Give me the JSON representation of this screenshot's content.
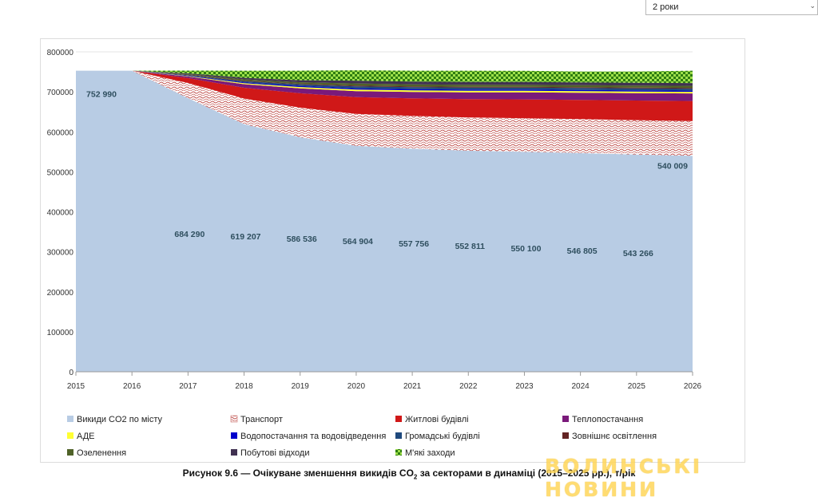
{
  "top_select": {
    "value": "2 роки",
    "caret": "⌄"
  },
  "caption": {
    "prefix": "Рисунок  9.6 — Очікуване зменшення викидів CO",
    "sub": "2",
    "suffix": " за секторами в динаміці (2015–2025 рр.), т/рік"
  },
  "watermark": "ВОЛИНСЬКІ НОВИНИ",
  "chart_data": {
    "type": "area",
    "stacked": true,
    "title": "",
    "xlabel": "",
    "ylabel": "",
    "x": [
      2015,
      2016,
      2017,
      2018,
      2019,
      2020,
      2021,
      2022,
      2023,
      2024,
      2025,
      2026
    ],
    "x_axis_extends_to": 2026,
    "ylim": [
      0,
      800000
    ],
    "yticks": [
      0,
      100000,
      200000,
      300000,
      400000,
      500000,
      600000,
      700000,
      800000
    ],
    "ytick_labels": [
      "0",
      "100000",
      "200000",
      "300000",
      "400000",
      "500000",
      "600000",
      "700000",
      "800000"
    ],
    "total": 752990,
    "series": [
      {
        "name": "Викиди CO2 по місту",
        "color": "#b8cce4",
        "pattern": "solid",
        "values": [
          752990,
          752990,
          684290,
          619207,
          586536,
          564904,
          557756,
          552811,
          550100,
          546805,
          543266,
          540009
        ]
      },
      {
        "name": "Транспорт",
        "color": "#c0504d",
        "pattern": "waves",
        "values": [
          0,
          0,
          38000,
          64000,
          74000,
          80000,
          82000,
          83000,
          84000,
          85000,
          86000,
          87000
        ]
      },
      {
        "name": "Житлові будівлі",
        "color": "#d01818",
        "pattern": "solid",
        "values": [
          0,
          0,
          12000,
          27000,
          36000,
          42000,
          44000,
          46000,
          47000,
          48000,
          49000,
          50000
        ]
      },
      {
        "name": "Теплопостачання",
        "color": "#7a1a7a",
        "pattern": "solid",
        "values": [
          0,
          0,
          4000,
          9000,
          12000,
          15000,
          16000,
          17000,
          17500,
          18000,
          18500,
          19000
        ]
      },
      {
        "name": "АДЕ",
        "color": "#ffff33",
        "pattern": "solid",
        "values": [
          0,
          0,
          1000,
          2500,
          3500,
          4000,
          4000,
          4000,
          4000,
          4000,
          4000,
          4000
        ]
      },
      {
        "name": "Водопостачання та водовідведення",
        "color": "#0000cc",
        "pattern": "solid",
        "values": [
          0,
          0,
          1000,
          2000,
          2500,
          3000,
          3000,
          3000,
          3000,
          3000,
          3000,
          3000
        ]
      },
      {
        "name": "Громадські будівлі",
        "color": "#1f497d",
        "pattern": "solid",
        "values": [
          0,
          0,
          1500,
          3000,
          4000,
          5000,
          5000,
          5000,
          5000,
          5000,
          5000,
          5000
        ]
      },
      {
        "name": "Зовнішнє освітлення",
        "color": "#632423",
        "pattern": "solid",
        "values": [
          0,
          0,
          1000,
          1500,
          1500,
          2000,
          2000,
          2000,
          2000,
          2000,
          2000,
          2000
        ]
      },
      {
        "name": "Озеленення",
        "color": "#4f6228",
        "pattern": "solid",
        "values": [
          0,
          0,
          1500,
          3000,
          4000,
          5000,
          5000,
          5000,
          5000,
          5000,
          5000,
          5000
        ]
      },
      {
        "name": "Побутові відходи",
        "color": "#403151",
        "pattern": "solid",
        "values": [
          0,
          0,
          2000,
          4000,
          5000,
          7000,
          7000,
          7000,
          7000,
          7000,
          7000,
          7000
        ]
      },
      {
        "name": "М'які заходи",
        "color": "#5ab52a",
        "pattern": "checker",
        "values": [
          0,
          0,
          6790,
          17783,
          23964,
          26086,
          27234,
          28179,
          27890,
          27185,
          28224,
          30981
        ]
      }
    ],
    "data_labels": [
      {
        "x": 2015,
        "value": 752990,
        "text": "752 990"
      },
      {
        "x": 2017,
        "value": 684290,
        "text": "684 290"
      },
      {
        "x": 2018,
        "value": 619207,
        "text": "619 207"
      },
      {
        "x": 2019,
        "value": 586536,
        "text": "586 536"
      },
      {
        "x": 2020,
        "value": 564904,
        "text": "564 904"
      },
      {
        "x": 2021,
        "value": 557756,
        "text": "557 756"
      },
      {
        "x": 2022,
        "value": 552811,
        "text": "552 811"
      },
      {
        "x": 2023,
        "value": 550100,
        "text": "550 100"
      },
      {
        "x": 2024,
        "value": 546805,
        "text": "546 805"
      },
      {
        "x": 2025,
        "value": 543266,
        "text": "543 266"
      },
      {
        "x": 2026,
        "value": 540009,
        "text": "540 009"
      }
    ],
    "legend": {
      "position": "bottom",
      "columns": 4
    }
  }
}
